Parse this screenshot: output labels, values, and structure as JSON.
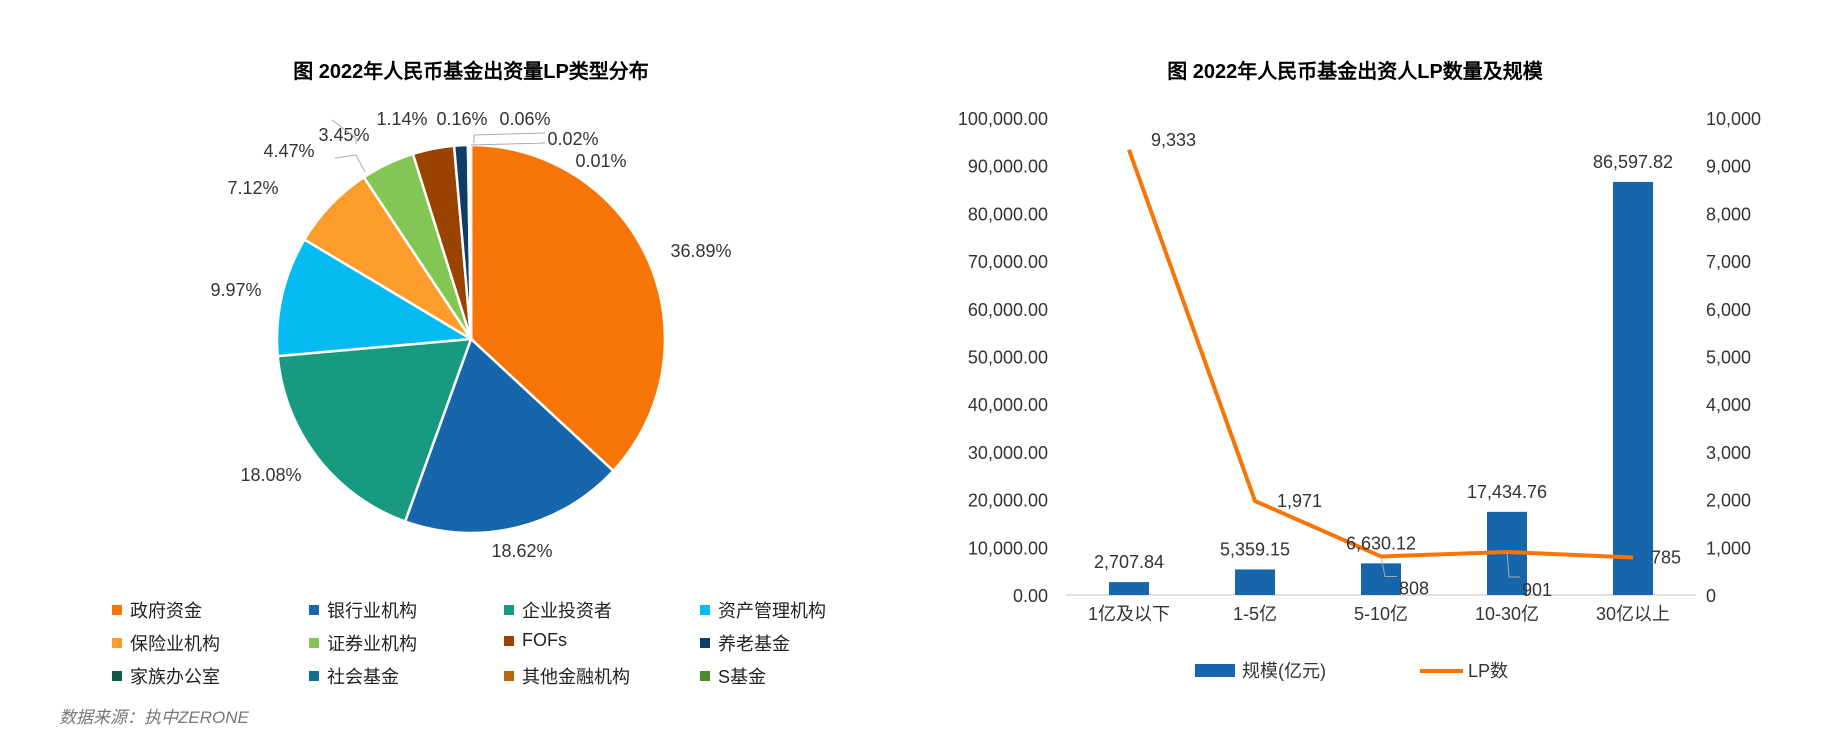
{
  "chart_data": [
    {
      "type": "pie",
      "title": "图 2022年人民币基金出资量LP类型分布",
      "legend_position": "bottom",
      "slices": [
        {
          "name": "政府资金",
          "value": 36.89,
          "label": "36.89%",
          "color": "#F77406"
        },
        {
          "name": "银行业机构",
          "value": 18.62,
          "label": "18.62%",
          "color": "#1766AC"
        },
        {
          "name": "企业投资者",
          "value": 18.08,
          "label": "18.08%",
          "color": "#179A80"
        },
        {
          "name": "资产管理机构",
          "value": 9.97,
          "label": "9.97%",
          "color": "#05BBF2"
        },
        {
          "name": "保险业机构",
          "value": 7.12,
          "label": "7.12%",
          "color": "#FC9C2A"
        },
        {
          "name": "证券业机构",
          "value": 4.47,
          "label": "4.47%",
          "color": "#83C653"
        },
        {
          "name": "FOFs",
          "value": 3.45,
          "label": "3.45%",
          "color": "#9A4300"
        },
        {
          "name": "养老基金",
          "value": 1.14,
          "label": "1.14%",
          "color": "#0D3D69"
        },
        {
          "name": "家族办公室",
          "value": 0.16,
          "label": "0.16%",
          "color": "#0E5C48"
        },
        {
          "name": "社会基金",
          "value": 0.06,
          "label": "0.06%",
          "color": "#106E92"
        },
        {
          "name": "其他金融机构",
          "value": 0.02,
          "label": "0.02%",
          "color": "#B8660C"
        },
        {
          "name": "S基金",
          "value": 0.01,
          "label": "0.01%",
          "color": "#4B8A2D"
        }
      ]
    },
    {
      "type": "bar+line",
      "title": "图 2022年人民币基金出资人LP数量及规模",
      "categories": [
        "1亿及以下",
        "1-5亿",
        "5-10亿",
        "10-30亿",
        "30亿以上"
      ],
      "legend_position": "bottom",
      "series": [
        {
          "name": "规模(亿元)",
          "type": "bar",
          "axis": "left",
          "color": "#1766AC",
          "values": [
            2707.84,
            5359.15,
            6630.12,
            17434.76,
            86597.82
          ],
          "labels": [
            "2,707.84",
            "5,359.15",
            "6,630.12",
            "17,434.76",
            "86,597.82"
          ]
        },
        {
          "name": "LP数",
          "type": "line",
          "axis": "right",
          "color": "#F77406",
          "values": [
            9333,
            1971,
            808,
            901,
            785
          ],
          "labels": [
            "9,333",
            "1,971",
            "808",
            "901",
            "785"
          ]
        }
      ],
      "y_left": {
        "range": [
          0,
          100000
        ],
        "ticks": [
          "0.00",
          "10,000.00",
          "20,000.00",
          "30,000.00",
          "40,000.00",
          "50,000.00",
          "60,000.00",
          "70,000.00",
          "80,000.00",
          "90,000.00",
          "100,000.00"
        ]
      },
      "y_right": {
        "range": [
          0,
          10000
        ],
        "ticks": [
          "0",
          "1,000",
          "2,000",
          "3,000",
          "4,000",
          "5,000",
          "6,000",
          "7,000",
          "8,000",
          "9,000",
          "10,000"
        ]
      },
      "grid": false
    }
  ],
  "source": "数据来源：执中ZERONE"
}
